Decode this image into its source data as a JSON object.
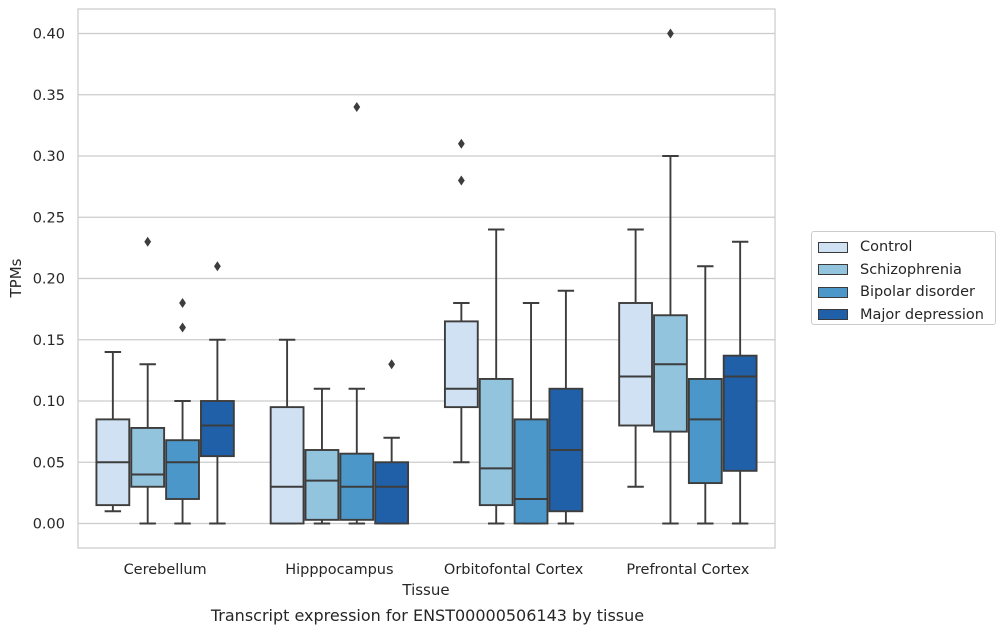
{
  "caption": "Transcript expression for ENST00000506143 by tissue",
  "colors": {
    "Control": "#cfe1f2",
    "Schizophrenia": "#93c4de",
    "Bipolar disorder": "#4b97c9",
    "Major depression": "#2060a8"
  },
  "chart_data": {
    "type": "box",
    "xlabel": "Tissue",
    "ylabel": "TPMs",
    "ylim": [
      -0.02,
      0.42
    ],
    "yticks": [
      "0.00",
      "0.05",
      "0.10",
      "0.15",
      "0.20",
      "0.25",
      "0.30",
      "0.35",
      "0.40"
    ],
    "grid": "horizontal",
    "legend_position": "right",
    "categories": [
      "Cerebellum",
      "Hipppocampus",
      "Orbitofontal Cortex",
      "Prefrontal Cortex"
    ],
    "series": [
      {
        "name": "Control",
        "boxes": [
          {
            "whislo": 0.01,
            "q1": 0.015,
            "med": 0.05,
            "q3": 0.085,
            "whishi": 0.14,
            "fliers": []
          },
          {
            "whislo": 0.0,
            "q1": 0.0,
            "med": 0.03,
            "q3": 0.095,
            "whishi": 0.15,
            "fliers": []
          },
          {
            "whislo": 0.05,
            "q1": 0.095,
            "med": 0.11,
            "q3": 0.165,
            "whishi": 0.18,
            "fliers": [
              0.28,
              0.31
            ]
          },
          {
            "whislo": 0.03,
            "q1": 0.08,
            "med": 0.12,
            "q3": 0.18,
            "whishi": 0.24,
            "fliers": []
          }
        ]
      },
      {
        "name": "Schizophrenia",
        "boxes": [
          {
            "whislo": 0.0,
            "q1": 0.03,
            "med": 0.04,
            "q3": 0.078,
            "whishi": 0.13,
            "fliers": [
              0.23
            ]
          },
          {
            "whislo": 0.0,
            "q1": 0.003,
            "med": 0.035,
            "q3": 0.06,
            "whishi": 0.11,
            "fliers": []
          },
          {
            "whislo": 0.0,
            "q1": 0.015,
            "med": 0.045,
            "q3": 0.118,
            "whishi": 0.24,
            "fliers": []
          },
          {
            "whislo": 0.0,
            "q1": 0.075,
            "med": 0.13,
            "q3": 0.17,
            "whishi": 0.3,
            "fliers": [
              0.4
            ]
          }
        ]
      },
      {
        "name": "Bipolar disorder",
        "boxes": [
          {
            "whislo": 0.0,
            "q1": 0.02,
            "med": 0.05,
            "q3": 0.068,
            "whishi": 0.1,
            "fliers": [
              0.16,
              0.18
            ]
          },
          {
            "whislo": 0.0,
            "q1": 0.003,
            "med": 0.03,
            "q3": 0.057,
            "whishi": 0.11,
            "fliers": [
              0.34
            ]
          },
          {
            "whislo": 0.0,
            "q1": 0.0,
            "med": 0.02,
            "q3": 0.085,
            "whishi": 0.18,
            "fliers": []
          },
          {
            "whislo": 0.0,
            "q1": 0.033,
            "med": 0.085,
            "q3": 0.118,
            "whishi": 0.21,
            "fliers": []
          }
        ]
      },
      {
        "name": "Major depression",
        "boxes": [
          {
            "whislo": 0.0,
            "q1": 0.055,
            "med": 0.08,
            "q3": 0.1,
            "whishi": 0.15,
            "fliers": [
              0.21
            ]
          },
          {
            "whislo": 0.0,
            "q1": 0.0,
            "med": 0.03,
            "q3": 0.05,
            "whishi": 0.07,
            "fliers": [
              0.13
            ]
          },
          {
            "whislo": 0.0,
            "q1": 0.01,
            "med": 0.06,
            "q3": 0.11,
            "whishi": 0.19,
            "fliers": []
          },
          {
            "whislo": 0.0,
            "q1": 0.043,
            "med": 0.12,
            "q3": 0.137,
            "whishi": 0.23,
            "fliers": []
          }
        ]
      }
    ]
  }
}
